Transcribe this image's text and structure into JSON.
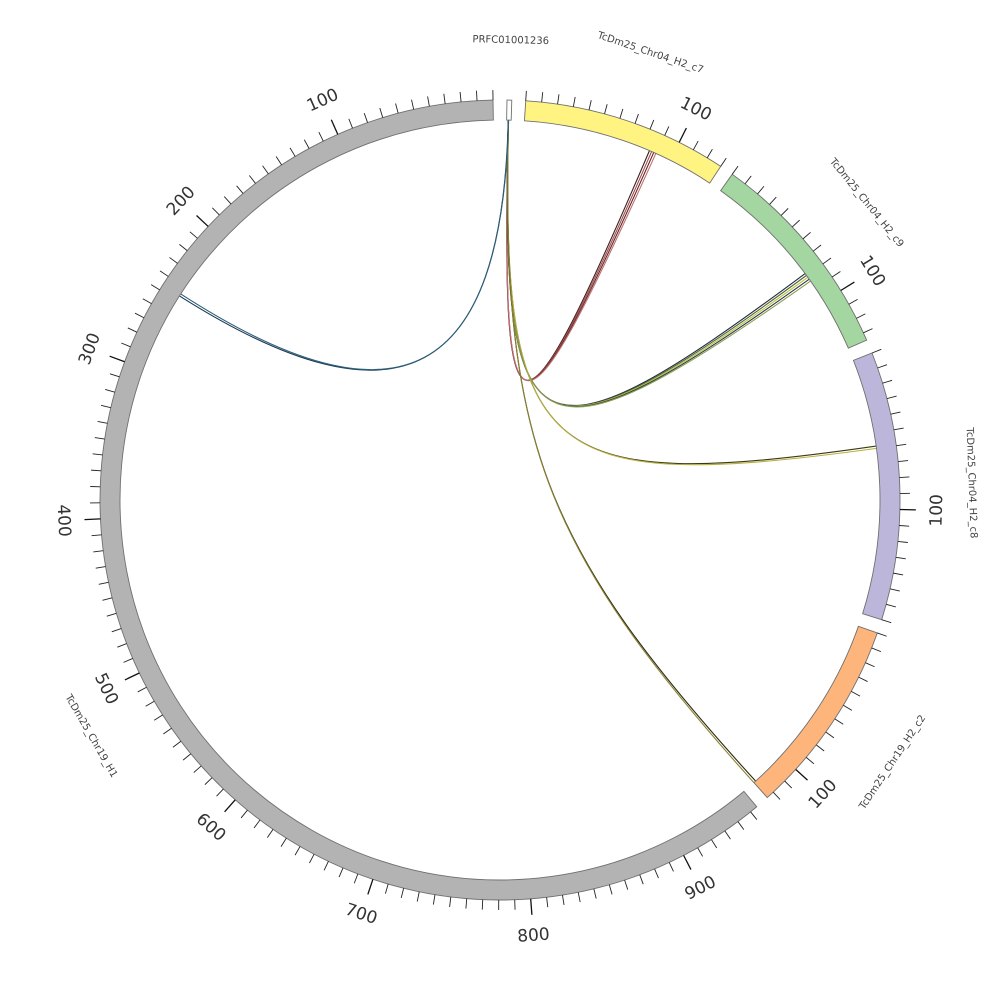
{
  "chart_data": {
    "type": "circos",
    "segments": [
      {
        "id": "PRFC01001236",
        "label": "PRFC01001236",
        "length": 3,
        "color": "#ffffff",
        "tick_labels": []
      },
      {
        "id": "c7",
        "label": "TcDm25_Chr04_H2_c7",
        "length": 130,
        "color": "#fff382",
        "tick_labels": [
          "100"
        ]
      },
      {
        "id": "c9",
        "label": "TcDm25_Chr04_H2_c9",
        "length": 135,
        "color": "#a3d6a0",
        "tick_labels": [
          "100"
        ]
      },
      {
        "id": "c8",
        "label": "TcDm25_Chr04_H2_c8",
        "length": 170,
        "color": "#bcb7da",
        "tick_labels": [
          "100"
        ]
      },
      {
        "id": "c2",
        "label": "TcDm25_Chr19_H2_c2",
        "length": 125,
        "color": "#fdb57b",
        "tick_labels": [
          "100"
        ]
      },
      {
        "id": "H1",
        "label": "TcDm25_Chr19_H1",
        "length": 955,
        "color": "#b3b3b3",
        "tick_labels": [
          "100",
          "200",
          "300",
          "400",
          "500",
          "600",
          "700",
          "800",
          "900"
        ]
      }
    ],
    "links": [
      {
        "from": "PRFC01001236",
        "to": "c7",
        "target_pos": 88,
        "colors": [
          "#3d1f1f",
          "#a05050",
          "#6a2a2a",
          "#c07070"
        ]
      },
      {
        "from": "PRFC01001236",
        "to": "c9",
        "target_pos": 82,
        "colors": [
          "#1f2b3d",
          "#4e6a3a",
          "#c5c040",
          "#2a3a4a",
          "#88a050"
        ]
      },
      {
        "from": "PRFC01001236",
        "to": "c8",
        "target_pos": 60,
        "colors": [
          "#3a3a10",
          "#b8b040"
        ]
      },
      {
        "from": "PRFC01001236",
        "to": "c2",
        "target_pos": 125,
        "colors": [
          "#2a2a10",
          "#8a8030"
        ]
      },
      {
        "from": "PRFC01001236",
        "to": "H1",
        "target_pos": 245,
        "colors": [
          "#1a3a55",
          "#2e5f78"
        ]
      }
    ]
  }
}
